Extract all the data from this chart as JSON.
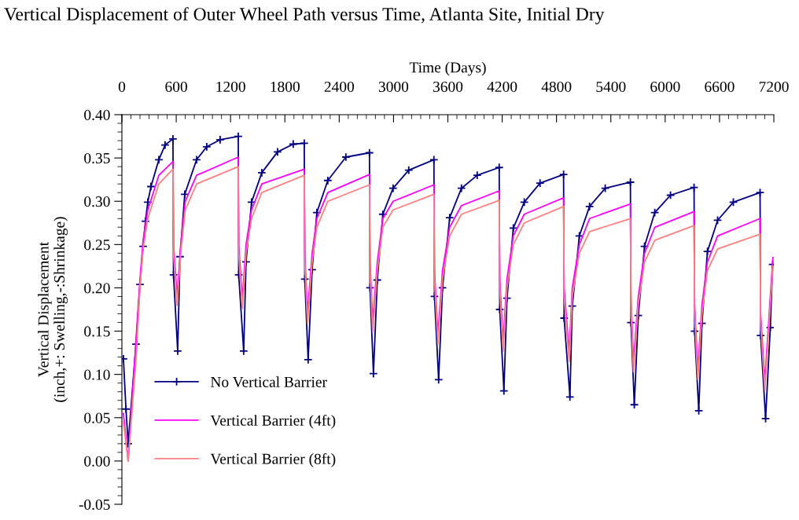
{
  "chart_data": {
    "type": "line",
    "title": "Vertical Displacement of Outer Wheel Path versus Time, Atlanta Site, Initial Dry",
    "xlabel": "Time (Days)",
    "ylabel": "Vertical Displacement\n(inch,+: Swelling,-:Shrinkage)",
    "xlim": [
      0,
      7200
    ],
    "xticks": [
      0,
      600,
      1200,
      1800,
      2400,
      3000,
      3600,
      4200,
      4800,
      5400,
      6000,
      6600,
      7200
    ],
    "ylim": [
      -0.05,
      0.4
    ],
    "yticks": [
      {
        "value": -0.05,
        "label": "-0.05"
      },
      {
        "value": 0.0,
        "label": "0.00"
      },
      {
        "value": 0.05,
        "label": "0.05"
      },
      {
        "value": 0.1,
        "label": "0.10"
      },
      {
        "value": 0.15,
        "label": "0.15"
      },
      {
        "value": 0.2,
        "label": "0.20"
      },
      {
        "value": 0.25,
        "label": "0.25"
      },
      {
        "value": 0.3,
        "label": "0.30"
      },
      {
        "value": 0.35,
        "label": "0.35"
      },
      {
        "value": 0.4,
        "label": "0.40"
      }
    ],
    "grid": false,
    "legend": "bottom left",
    "series": [
      {
        "name": "No Vertical Barrier",
        "color": "#000080",
        "marker": "cross",
        "x": [
          17,
          45,
          69,
          156,
          200,
          234,
          260,
          286,
          321,
          408,
          477,
          564,
          570,
          616,
          642,
          694,
          825,
          937,
          1085,
          1285,
          1290,
          1345,
          1371,
          1432,
          1545,
          1719,
          1892,
          2014,
          2020,
          2057,
          2101,
          2153,
          2274,
          2474,
          2734,
          2740,
          2778,
          2821,
          2882,
          2995,
          3168,
          3446,
          3452,
          3498,
          3541,
          3620,
          3750,
          3924,
          4167,
          4173,
          4219,
          4253,
          4323,
          4444,
          4618,
          4878,
          4884,
          4948,
          4974,
          5052,
          5165,
          5338,
          5616,
          5622,
          5659,
          5703,
          5772,
          5885,
          6059,
          6319,
          6325,
          6371,
          6406,
          6467,
          6579,
          6753,
          7048,
          7054,
          7109,
          7161,
          7187
        ],
        "values": [
          0.118,
          0.06,
          0.02,
          0.135,
          0.204,
          0.248,
          0.277,
          0.299,
          0.317,
          0.348,
          0.365,
          0.372,
          0.215,
          0.127,
          0.236,
          0.308,
          0.348,
          0.363,
          0.371,
          0.375,
          0.215,
          0.127,
          0.23,
          0.299,
          0.333,
          0.357,
          0.366,
          0.367,
          0.21,
          0.117,
          0.221,
          0.287,
          0.324,
          0.351,
          0.356,
          0.2,
          0.101,
          0.209,
          0.285,
          0.315,
          0.336,
          0.348,
          0.19,
          0.094,
          0.2,
          0.281,
          0.315,
          0.33,
          0.339,
          0.175,
          0.081,
          0.188,
          0.269,
          0.299,
          0.321,
          0.331,
          0.165,
          0.074,
          0.179,
          0.26,
          0.294,
          0.315,
          0.322,
          0.16,
          0.065,
          0.168,
          0.248,
          0.287,
          0.307,
          0.316,
          0.15,
          0.058,
          0.159,
          0.242,
          0.278,
          0.299,
          0.31,
          0.145,
          0.049,
          0.154,
          0.227
        ]
      },
      {
        "name": "Vertical Barrier (4ft)",
        "color": "#ff00ff",
        "marker": "none",
        "x": [
          17,
          69,
          156,
          200,
          234,
          286,
          408,
          564,
          570,
          610,
          650,
          700,
          825,
          1285,
          1290,
          1330,
          1371,
          1432,
          1545,
          2014,
          2020,
          2050,
          2101,
          2153,
          2274,
          2734,
          2740,
          2770,
          2821,
          2882,
          2995,
          3446,
          3452,
          3490,
          3541,
          3620,
          3750,
          4167,
          4173,
          4210,
          4253,
          4323,
          4444,
          4878,
          4884,
          4940,
          4974,
          5052,
          5165,
          5616,
          5622,
          5650,
          5703,
          5772,
          5885,
          6319,
          6325,
          6360,
          6406,
          6467,
          6579,
          7048,
          7054,
          7100,
          7161,
          7190
        ],
        "values": [
          0.055,
          0.0,
          0.14,
          0.21,
          0.255,
          0.29,
          0.33,
          0.346,
          0.25,
          0.19,
          0.25,
          0.3,
          0.33,
          0.351,
          0.25,
          0.186,
          0.25,
          0.29,
          0.32,
          0.337,
          0.24,
          0.17,
          0.24,
          0.28,
          0.31,
          0.331,
          0.23,
          0.16,
          0.23,
          0.28,
          0.3,
          0.319,
          0.22,
          0.145,
          0.22,
          0.27,
          0.295,
          0.312,
          0.21,
          0.137,
          0.21,
          0.26,
          0.285,
          0.304,
          0.2,
          0.125,
          0.2,
          0.25,
          0.28,
          0.297,
          0.19,
          0.113,
          0.19,
          0.24,
          0.27,
          0.288,
          0.18,
          0.104,
          0.18,
          0.23,
          0.26,
          0.28,
          0.17,
          0.092,
          0.19,
          0.235
        ]
      },
      {
        "name": "Vertical Barrier (8ft)",
        "color": "#ff8080",
        "marker": "none",
        "x": [
          17,
          69,
          156,
          200,
          234,
          286,
          408,
          564,
          570,
          610,
          650,
          700,
          825,
          1285,
          1290,
          1330,
          1371,
          1432,
          1545,
          2014,
          2020,
          2050,
          2101,
          2153,
          2274,
          2734,
          2740,
          2770,
          2821,
          2882,
          2995,
          3446,
          3452,
          3490,
          3541,
          3620,
          3750,
          4167,
          4173,
          4210,
          4253,
          4323,
          4444,
          4878,
          4884,
          4940,
          4974,
          5052,
          5165,
          5616,
          5622,
          5650,
          5703,
          5772,
          5885,
          6319,
          6325,
          6360,
          6406,
          6467,
          6579,
          7048,
          7054,
          7100,
          7161,
          7190
        ],
        "values": [
          0.045,
          0.0,
          0.117,
          0.2,
          0.245,
          0.28,
          0.32,
          0.337,
          0.24,
          0.18,
          0.24,
          0.29,
          0.32,
          0.34,
          0.24,
          0.176,
          0.24,
          0.28,
          0.31,
          0.33,
          0.23,
          0.159,
          0.23,
          0.27,
          0.3,
          0.319,
          0.22,
          0.149,
          0.22,
          0.27,
          0.29,
          0.308,
          0.21,
          0.135,
          0.21,
          0.26,
          0.285,
          0.301,
          0.2,
          0.127,
          0.2,
          0.25,
          0.275,
          0.294,
          0.19,
          0.115,
          0.19,
          0.24,
          0.265,
          0.28,
          0.18,
          0.103,
          0.18,
          0.23,
          0.255,
          0.272,
          0.17,
          0.094,
          0.17,
          0.22,
          0.245,
          0.262,
          0.16,
          0.082,
          0.18,
          0.225
        ]
      }
    ]
  }
}
